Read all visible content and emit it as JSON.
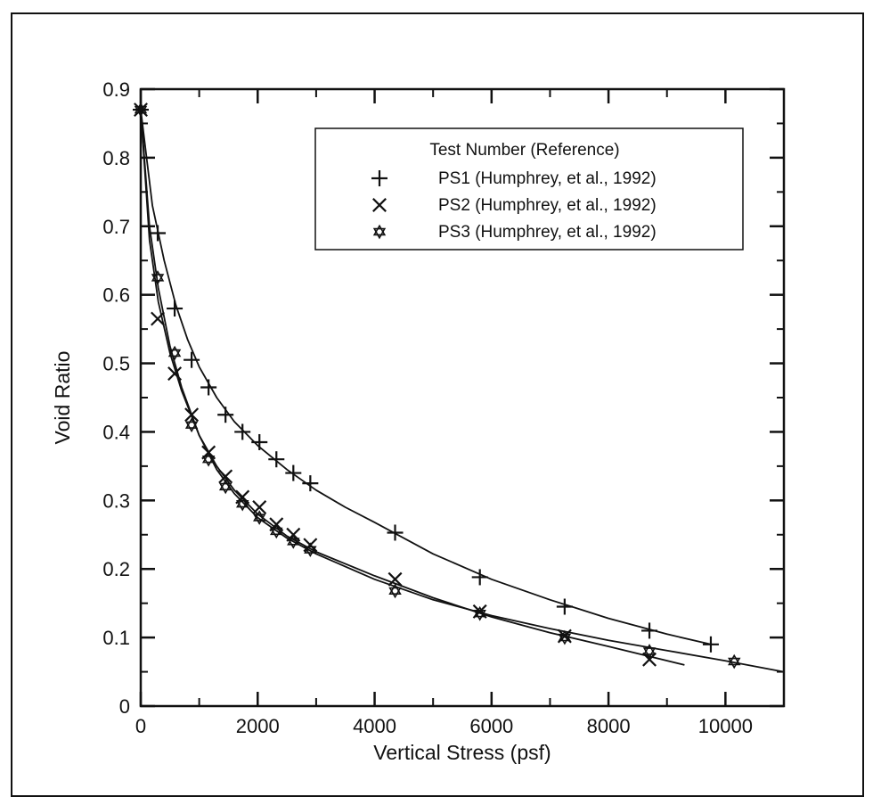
{
  "chart_data": {
    "type": "scatter",
    "title": "",
    "xlabel": "Vertical Stress (psf)",
    "ylabel": "Void Ratio",
    "xlim": [
      0,
      11000
    ],
    "ylim": [
      0,
      0.9
    ],
    "x_ticks": [
      0,
      2000,
      4000,
      6000,
      8000,
      10000
    ],
    "y_ticks": [
      0,
      0.1,
      0.2,
      0.3,
      0.4,
      0.5,
      0.6,
      0.7,
      0.8,
      0.9
    ],
    "x_tick_labels": [
      "0",
      "2000",
      "4000",
      "6000",
      "8000",
      "10000"
    ],
    "y_tick_labels": [
      "0",
      "0.1",
      "0.2",
      "0.3",
      "0.4",
      "0.5",
      "0.6",
      "0.7",
      "0.8",
      "0.9"
    ],
    "grid": false,
    "legend": {
      "placement": "top-right",
      "title": "Test Number (Reference)"
    },
    "series": [
      {
        "name": "PS1 (Humphrey, et al., 1992)",
        "marker": "plus",
        "x": [
          0,
          290,
          580,
          870,
          1160,
          1450,
          1740,
          2030,
          2320,
          2610,
          2900,
          4350,
          5800,
          7250,
          8700,
          9750
        ],
        "y": [
          0.87,
          0.69,
          0.58,
          0.505,
          0.465,
          0.425,
          0.4,
          0.385,
          0.36,
          0.34,
          0.325,
          0.253,
          0.188,
          0.145,
          0.11,
          0.09
        ],
        "fit_x": [
          0,
          200,
          400,
          600,
          800,
          1000,
          1300,
          1600,
          2000,
          2500,
          3000,
          3500,
          4000,
          5000,
          6000,
          7000,
          8000,
          9000,
          9750
        ],
        "fit_y": [
          0.87,
          0.73,
          0.65,
          0.585,
          0.535,
          0.495,
          0.45,
          0.415,
          0.38,
          0.345,
          0.315,
          0.29,
          0.268,
          0.222,
          0.185,
          0.155,
          0.128,
          0.105,
          0.09
        ]
      },
      {
        "name": "PS2 (Humphrey, et al., 1992)",
        "marker": "x",
        "x": [
          0,
          290,
          580,
          870,
          1160,
          1450,
          1740,
          2030,
          2320,
          2610,
          2900,
          4350,
          5800,
          7250,
          8700
        ],
        "y": [
          0.87,
          0.565,
          0.485,
          0.425,
          0.37,
          0.335,
          0.305,
          0.29,
          0.265,
          0.25,
          0.235,
          0.185,
          0.138,
          0.102,
          0.068
        ],
        "fit_x": [
          0,
          150,
          300,
          500,
          700,
          1000,
          1300,
          1600,
          2000,
          2500,
          3000,
          4000,
          5000,
          6000,
          7000,
          8000,
          9300
        ],
        "fit_y": [
          0.87,
          0.68,
          0.59,
          0.515,
          0.46,
          0.395,
          0.35,
          0.315,
          0.28,
          0.248,
          0.225,
          0.19,
          0.158,
          0.13,
          0.107,
          0.087,
          0.06
        ]
      },
      {
        "name": "PS3 (Humphrey, et al., 1992)",
        "marker": "star",
        "x": [
          0,
          290,
          580,
          870,
          1160,
          1450,
          1740,
          2030,
          2320,
          2610,
          2900,
          4350,
          5800,
          7250,
          8700,
          10150
        ],
        "y": [
          0.87,
          0.625,
          0.515,
          0.41,
          0.36,
          0.32,
          0.295,
          0.275,
          0.255,
          0.24,
          0.228,
          0.168,
          0.135,
          0.1,
          0.08,
          0.065
        ],
        "fit_x": [
          0,
          150,
          300,
          500,
          700,
          1000,
          1300,
          1600,
          2000,
          2500,
          3000,
          4000,
          5000,
          6000,
          7000,
          8000,
          9000,
          10000,
          11000
        ],
        "fit_y": [
          0.87,
          0.7,
          0.61,
          0.525,
          0.465,
          0.395,
          0.345,
          0.31,
          0.275,
          0.245,
          0.222,
          0.185,
          0.155,
          0.132,
          0.113,
          0.096,
          0.081,
          0.066,
          0.05
        ]
      }
    ]
  }
}
